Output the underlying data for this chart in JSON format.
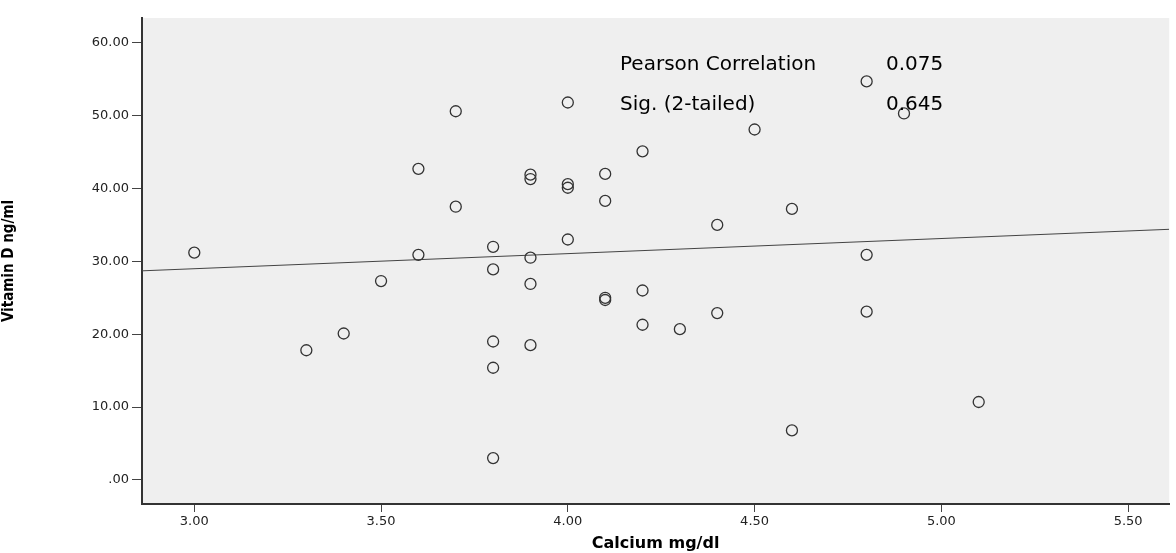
{
  "chart_data": {
    "type": "scatter",
    "xlabel": "Calcium mg/dl",
    "ylabel": "Vitamin D ng/ml",
    "xlim": [
      2.86,
      5.61
    ],
    "ylim": [
      -3.3,
      63.4
    ],
    "xticks": [
      {
        "value": 3,
        "label": "3.00"
      },
      {
        "value": 3.5,
        "label": "3.50"
      },
      {
        "value": 4,
        "label": "4.00"
      },
      {
        "value": 4.5,
        "label": "4.50"
      },
      {
        "value": 5,
        "label": "5.00"
      },
      {
        "value": 5.5,
        "label": "5.50"
      }
    ],
    "yticks": [
      {
        "value": 0,
        "label": ".00"
      },
      {
        "value": 10,
        "label": "10.00"
      },
      {
        "value": 20,
        "label": "20.00"
      },
      {
        "value": 30,
        "label": "30.00"
      },
      {
        "value": 40,
        "label": "40.00"
      },
      {
        "value": 50,
        "label": "50.00"
      },
      {
        "value": 60,
        "label": "60.00"
      }
    ],
    "grid": false,
    "legend": false,
    "annotations": [
      "Pearson Correlation",
      "0.075",
      "Sig. (2-tailed)",
      "0.645"
    ],
    "series": [
      {
        "marker": "circle",
        "color": "#333333",
        "x": [
          3.0,
          3.3,
          3.4,
          3.5,
          3.6,
          3.6,
          3.7,
          3.7,
          3.8,
          3.8,
          3.8,
          3.8,
          3.8,
          3.9,
          3.9,
          3.9,
          3.9,
          3.9,
          4.0,
          4.0,
          4.0,
          4.0,
          4.1,
          4.1,
          4.1,
          4.1,
          4.2,
          4.2,
          4.2,
          4.3,
          4.4,
          4.4,
          4.5,
          4.6,
          4.6,
          4.8,
          4.8,
          4.8,
          4.9,
          5.1
        ],
        "values": [
          31.2,
          17.8,
          20.1,
          27.3,
          42.7,
          30.9,
          50.6,
          37.5,
          32.0,
          28.9,
          19.0,
          15.4,
          3.0,
          41.9,
          41.3,
          30.5,
          26.9,
          18.5,
          51.8,
          40.6,
          40.1,
          33.0,
          42.0,
          38.3,
          25.0,
          24.7,
          45.1,
          26.0,
          21.3,
          20.7,
          35.0,
          22.9,
          48.1,
          37.2,
          6.8,
          54.7,
          30.9,
          23.1,
          50.3,
          10.7
        ]
      },
      {
        "type": "line",
        "marker": "none",
        "color": "#444444",
        "x": [
          2.86,
          5.61
        ],
        "values": [
          28.7,
          34.4
        ]
      }
    ]
  }
}
